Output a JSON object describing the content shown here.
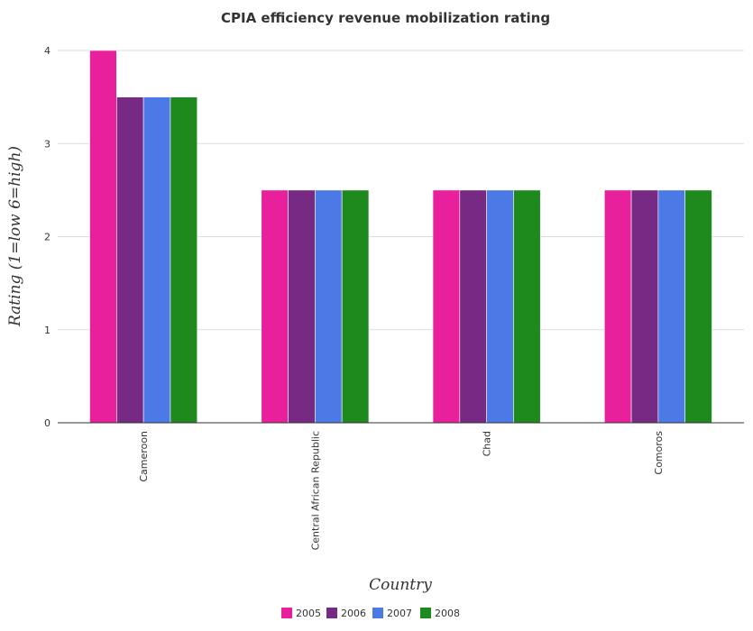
{
  "chart_data": {
    "type": "bar",
    "title": "CPIA efficiency revenue mobilization rating",
    "xlabel": "Country",
    "ylabel": "Rating (1=low 6=high)",
    "categories": [
      "Cameroon",
      "Central African Republic",
      "Chad",
      "Comoros"
    ],
    "series": [
      {
        "name": "2005",
        "color": "#e8209b",
        "values": [
          4.0,
          2.5,
          2.5,
          2.5
        ]
      },
      {
        "name": "2006",
        "color": "#762a83",
        "values": [
          3.5,
          2.5,
          2.5,
          2.5
        ]
      },
      {
        "name": "2007",
        "color": "#4b79e6",
        "values": [
          3.5,
          2.5,
          2.5,
          2.5
        ]
      },
      {
        "name": "2008",
        "color": "#1e8a1e",
        "values": [
          3.5,
          2.5,
          2.5,
          2.5
        ]
      }
    ],
    "ylim": [
      0,
      4.2
    ],
    "yticks": [
      "0",
      "1",
      "2",
      "3",
      "4"
    ],
    "grid": true,
    "legend_position": "bottom-center"
  }
}
